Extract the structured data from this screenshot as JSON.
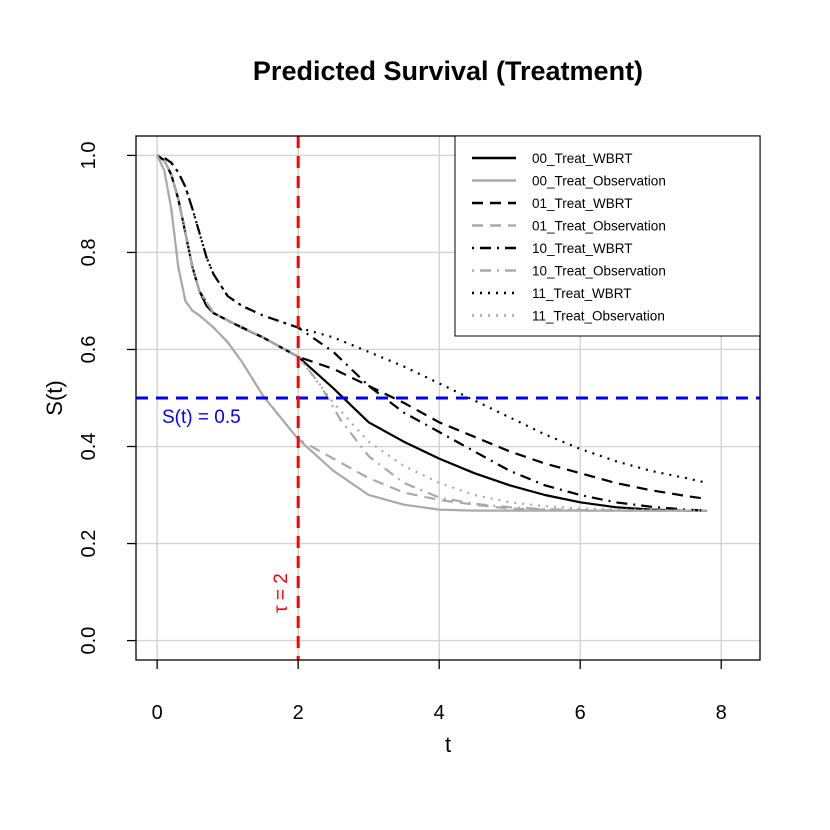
{
  "chart_data": {
    "type": "line",
    "title": "Predicted Survival (Treatment)",
    "xlabel": "t",
    "ylabel": "S(t)",
    "xlim": [
      -0.3,
      8.55
    ],
    "ylim": [
      -0.04,
      1.04
    ],
    "xticks": [
      0,
      2,
      4,
      6,
      8
    ],
    "yticks": [
      0.0,
      0.2,
      0.4,
      0.6,
      0.8,
      1.0
    ],
    "xtick_labels": [
      "0",
      "2",
      "4",
      "6",
      "8"
    ],
    "ytick_labels": [
      "0.0",
      "0.2",
      "0.4",
      "0.6",
      "0.8",
      "1.0"
    ],
    "grid": true,
    "legend_position": "top-right",
    "hline": {
      "y": 0.5,
      "label": "S(t) = 0.5",
      "color": "#0000ff"
    },
    "vline": {
      "x": 2,
      "label": "τ = 2",
      "color": "#ff0000"
    },
    "series": [
      {
        "name": "00_Treat_WBRT",
        "color": "#000000",
        "dash": "solid",
        "x": [
          0,
          0.1,
          0.2,
          0.3,
          0.4,
          0.5,
          0.6,
          0.7,
          0.8,
          1.0,
          1.2,
          1.5,
          2.0,
          2.5,
          3.0,
          3.5,
          4.0,
          4.5,
          5.0,
          5.5,
          6.0,
          6.5,
          7.0,
          7.5,
          7.8
        ],
        "values": [
          1.0,
          0.99,
          0.96,
          0.91,
          0.84,
          0.77,
          0.72,
          0.69,
          0.675,
          0.66,
          0.645,
          0.625,
          0.585,
          0.52,
          0.45,
          0.41,
          0.375,
          0.345,
          0.32,
          0.3,
          0.285,
          0.275,
          0.27,
          0.268,
          0.268
        ]
      },
      {
        "name": "00_Treat_Observation",
        "color": "#aaaaaa",
        "dash": "solid",
        "x": [
          0,
          0.1,
          0.2,
          0.3,
          0.4,
          0.5,
          0.6,
          0.8,
          1.0,
          1.2,
          1.5,
          2.0,
          2.5,
          3.0,
          3.5,
          4.0,
          4.5,
          5.0,
          6.0,
          7.0,
          7.8
        ],
        "values": [
          1.0,
          0.97,
          0.89,
          0.77,
          0.7,
          0.68,
          0.67,
          0.645,
          0.615,
          0.575,
          0.505,
          0.415,
          0.35,
          0.3,
          0.28,
          0.27,
          0.268,
          0.268,
          0.268,
          0.268,
          0.268
        ]
      },
      {
        "name": "01_Treat_WBRT",
        "color": "#000000",
        "dash": "dashed",
        "x": [
          0,
          0.1,
          0.2,
          0.3,
          0.4,
          0.5,
          0.6,
          0.8,
          1.0,
          1.5,
          2.0,
          2.5,
          3.0,
          3.5,
          4.0,
          4.5,
          5.0,
          5.5,
          6.0,
          6.5,
          7.0,
          7.5,
          7.8
        ],
        "values": [
          1.0,
          0.99,
          0.96,
          0.91,
          0.84,
          0.77,
          0.72,
          0.675,
          0.66,
          0.625,
          0.585,
          0.56,
          0.525,
          0.49,
          0.45,
          0.42,
          0.39,
          0.365,
          0.345,
          0.325,
          0.31,
          0.298,
          0.292
        ]
      },
      {
        "name": "01_Treat_Observation",
        "color": "#aaaaaa",
        "dash": "dashed",
        "x": [
          0,
          0.1,
          0.2,
          0.3,
          0.4,
          0.5,
          0.6,
          0.8,
          1.0,
          1.2,
          1.5,
          2.0,
          2.5,
          3.0,
          3.5,
          4.0,
          4.5,
          5.0,
          6.0,
          7.0,
          7.8
        ],
        "values": [
          1.0,
          0.97,
          0.89,
          0.77,
          0.7,
          0.68,
          0.67,
          0.645,
          0.615,
          0.575,
          0.505,
          0.415,
          0.375,
          0.335,
          0.305,
          0.29,
          0.28,
          0.272,
          0.268,
          0.268,
          0.268
        ]
      },
      {
        "name": "10_Treat_WBRT",
        "color": "#000000",
        "dash": "dotdash",
        "x": [
          0,
          0.1,
          0.2,
          0.3,
          0.4,
          0.5,
          0.6,
          0.7,
          0.8,
          1.0,
          1.2,
          1.5,
          2.0,
          2.5,
          3.0,
          3.5,
          4.0,
          4.5,
          5.0,
          5.5,
          6.0,
          6.5,
          7.0,
          7.5,
          7.8
        ],
        "values": [
          1.0,
          0.995,
          0.985,
          0.965,
          0.935,
          0.89,
          0.84,
          0.79,
          0.755,
          0.71,
          0.69,
          0.67,
          0.645,
          0.595,
          0.525,
          0.47,
          0.43,
          0.39,
          0.35,
          0.32,
          0.3,
          0.285,
          0.276,
          0.27,
          0.268
        ]
      },
      {
        "name": "10_Treat_Observation",
        "color": "#aaaaaa",
        "dash": "dotdash",
        "x": [
          0,
          0.1,
          0.2,
          0.3,
          0.4,
          0.5,
          0.6,
          0.8,
          1.0,
          1.5,
          2.0,
          2.3,
          2.6,
          3.0,
          3.5,
          4.0,
          4.5,
          5.0,
          5.5,
          6.0,
          7.0,
          7.8
        ],
        "values": [
          1.0,
          0.99,
          0.96,
          0.91,
          0.84,
          0.77,
          0.72,
          0.675,
          0.66,
          0.625,
          0.585,
          0.53,
          0.455,
          0.38,
          0.325,
          0.295,
          0.282,
          0.275,
          0.271,
          0.269,
          0.268,
          0.268
        ]
      },
      {
        "name": "11_Treat_WBRT",
        "color": "#000000",
        "dash": "dotted",
        "x": [
          0,
          0.1,
          0.2,
          0.3,
          0.4,
          0.5,
          0.6,
          0.7,
          0.8,
          1.0,
          1.2,
          1.5,
          2.0,
          2.5,
          3.0,
          3.5,
          4.0,
          4.5,
          5.0,
          5.5,
          6.0,
          6.5,
          7.0,
          7.5,
          7.8
        ],
        "values": [
          1.0,
          0.995,
          0.985,
          0.965,
          0.935,
          0.89,
          0.84,
          0.79,
          0.755,
          0.71,
          0.69,
          0.67,
          0.645,
          0.625,
          0.595,
          0.565,
          0.53,
          0.495,
          0.46,
          0.425,
          0.395,
          0.37,
          0.35,
          0.335,
          0.325
        ]
      },
      {
        "name": "11_Treat_Observation",
        "color": "#aaaaaa",
        "dash": "dotted",
        "x": [
          0,
          0.1,
          0.2,
          0.3,
          0.4,
          0.5,
          0.6,
          0.8,
          1.0,
          1.5,
          2.0,
          2.5,
          3.0,
          3.5,
          4.0,
          4.5,
          5.0,
          5.5,
          6.0,
          7.0,
          7.8
        ],
        "values": [
          1.0,
          0.99,
          0.96,
          0.91,
          0.84,
          0.77,
          0.72,
          0.675,
          0.66,
          0.625,
          0.585,
          0.49,
          0.41,
          0.36,
          0.325,
          0.3,
          0.285,
          0.277,
          0.272,
          0.269,
          0.268
        ]
      }
    ]
  }
}
